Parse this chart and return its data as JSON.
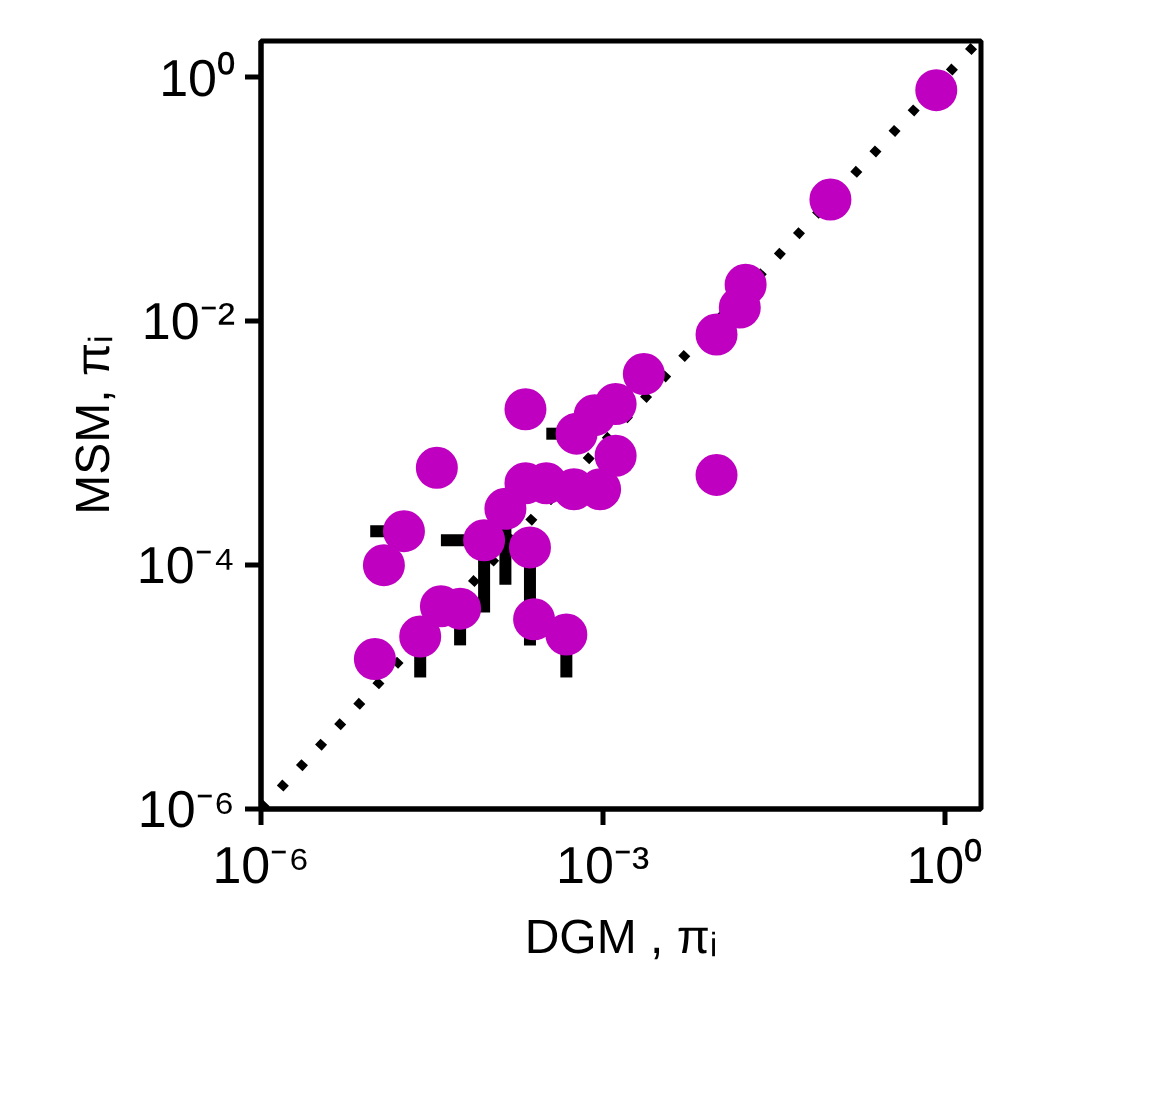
{
  "chart_data": {
    "type": "scatter",
    "xlabel": "DGM , πᵢ",
    "ylabel": "MSM, πᵢ",
    "log": "xy",
    "xlim": [
      1e-06,
      2.1
    ],
    "ylim": [
      1e-06,
      2.0
    ],
    "xticks": [
      {
        "value": 1e-06,
        "label": "10⁻⁶"
      },
      {
        "value": 0.001,
        "label": "10⁻³"
      },
      {
        "value": 1,
        "label": "10⁰"
      }
    ],
    "yticks": [
      {
        "value": 1e-06,
        "label": "10⁻⁶"
      },
      {
        "value": 0.0001,
        "label": "10⁻⁴"
      },
      {
        "value": 0.01,
        "label": "10⁻²"
      },
      {
        "value": 1,
        "label": "10⁰"
      }
    ],
    "grid": false,
    "series": [
      {
        "type": "line",
        "color": "#000000",
        "line_style": "dotted",
        "marker": "none",
        "x": [
          1e-06,
          2.0
        ],
        "values": [
          1e-06,
          2.0
        ]
      },
      {
        "color": "#c000c0",
        "marker": "circle",
        "x": [
          1e-05,
          2.5e-05,
          1.2e-05,
          1.8e-05,
          3.5e-05,
          0.00021,
          3.8e-05,
          5.6e-05,
          9.1e-05,
          0.00023,
          0.00014,
          0.00021,
          0.00032,
          0.00025,
          0.00048,
          0.00056,
          0.00095,
          0.0013,
          0.00059,
          0.00085,
          0.0013,
          0.0023,
          0.85,
          0.1,
          0.018,
          0.016,
          0.01,
          0.01
        ],
        "values": [
          1.7e-05,
          2.6e-05,
          0.0001,
          0.00019,
          0.00063,
          0.0019,
          4.6e-05,
          4.4e-05,
          0.00016,
          0.00014,
          0.00029,
          0.00047,
          0.00047,
          3.6e-05,
          2.7e-05,
          0.00042,
          0.00042,
          0.00079,
          0.0012,
          0.0017,
          0.0021,
          0.0037,
          0.79,
          0.1,
          0.02,
          0.013,
          0.0078,
          0.00055
        ],
        "errors": [
          null,
          [
            1.2e-05,
            2.6e-05
          ],
          null,
          null,
          null,
          null,
          null,
          [
            2.2e-05,
            4.4e-05
          ],
          [
            4.1e-05,
            0.00016
          ],
          [
            2.2e-05,
            0.00014
          ],
          [
            6.9e-05,
            0.00029
          ],
          null,
          null,
          null,
          [
            1.2e-05,
            2.7e-05
          ],
          null,
          null,
          null,
          null,
          null,
          null,
          null,
          null,
          null,
          null,
          null,
          null,
          null
        ],
        "xerrors": [
          null,
          null,
          null,
          [
            9.1e-06,
            1.8e-05
          ],
          null,
          null,
          null,
          null,
          [
            3.8e-05,
            9.1e-05
          ],
          null,
          null,
          null,
          null,
          null,
          null,
          null,
          null,
          null,
          [
            0.00032,
            0.00059
          ],
          null,
          null,
          null,
          null,
          null,
          null,
          null,
          null,
          null
        ]
      }
    ]
  }
}
